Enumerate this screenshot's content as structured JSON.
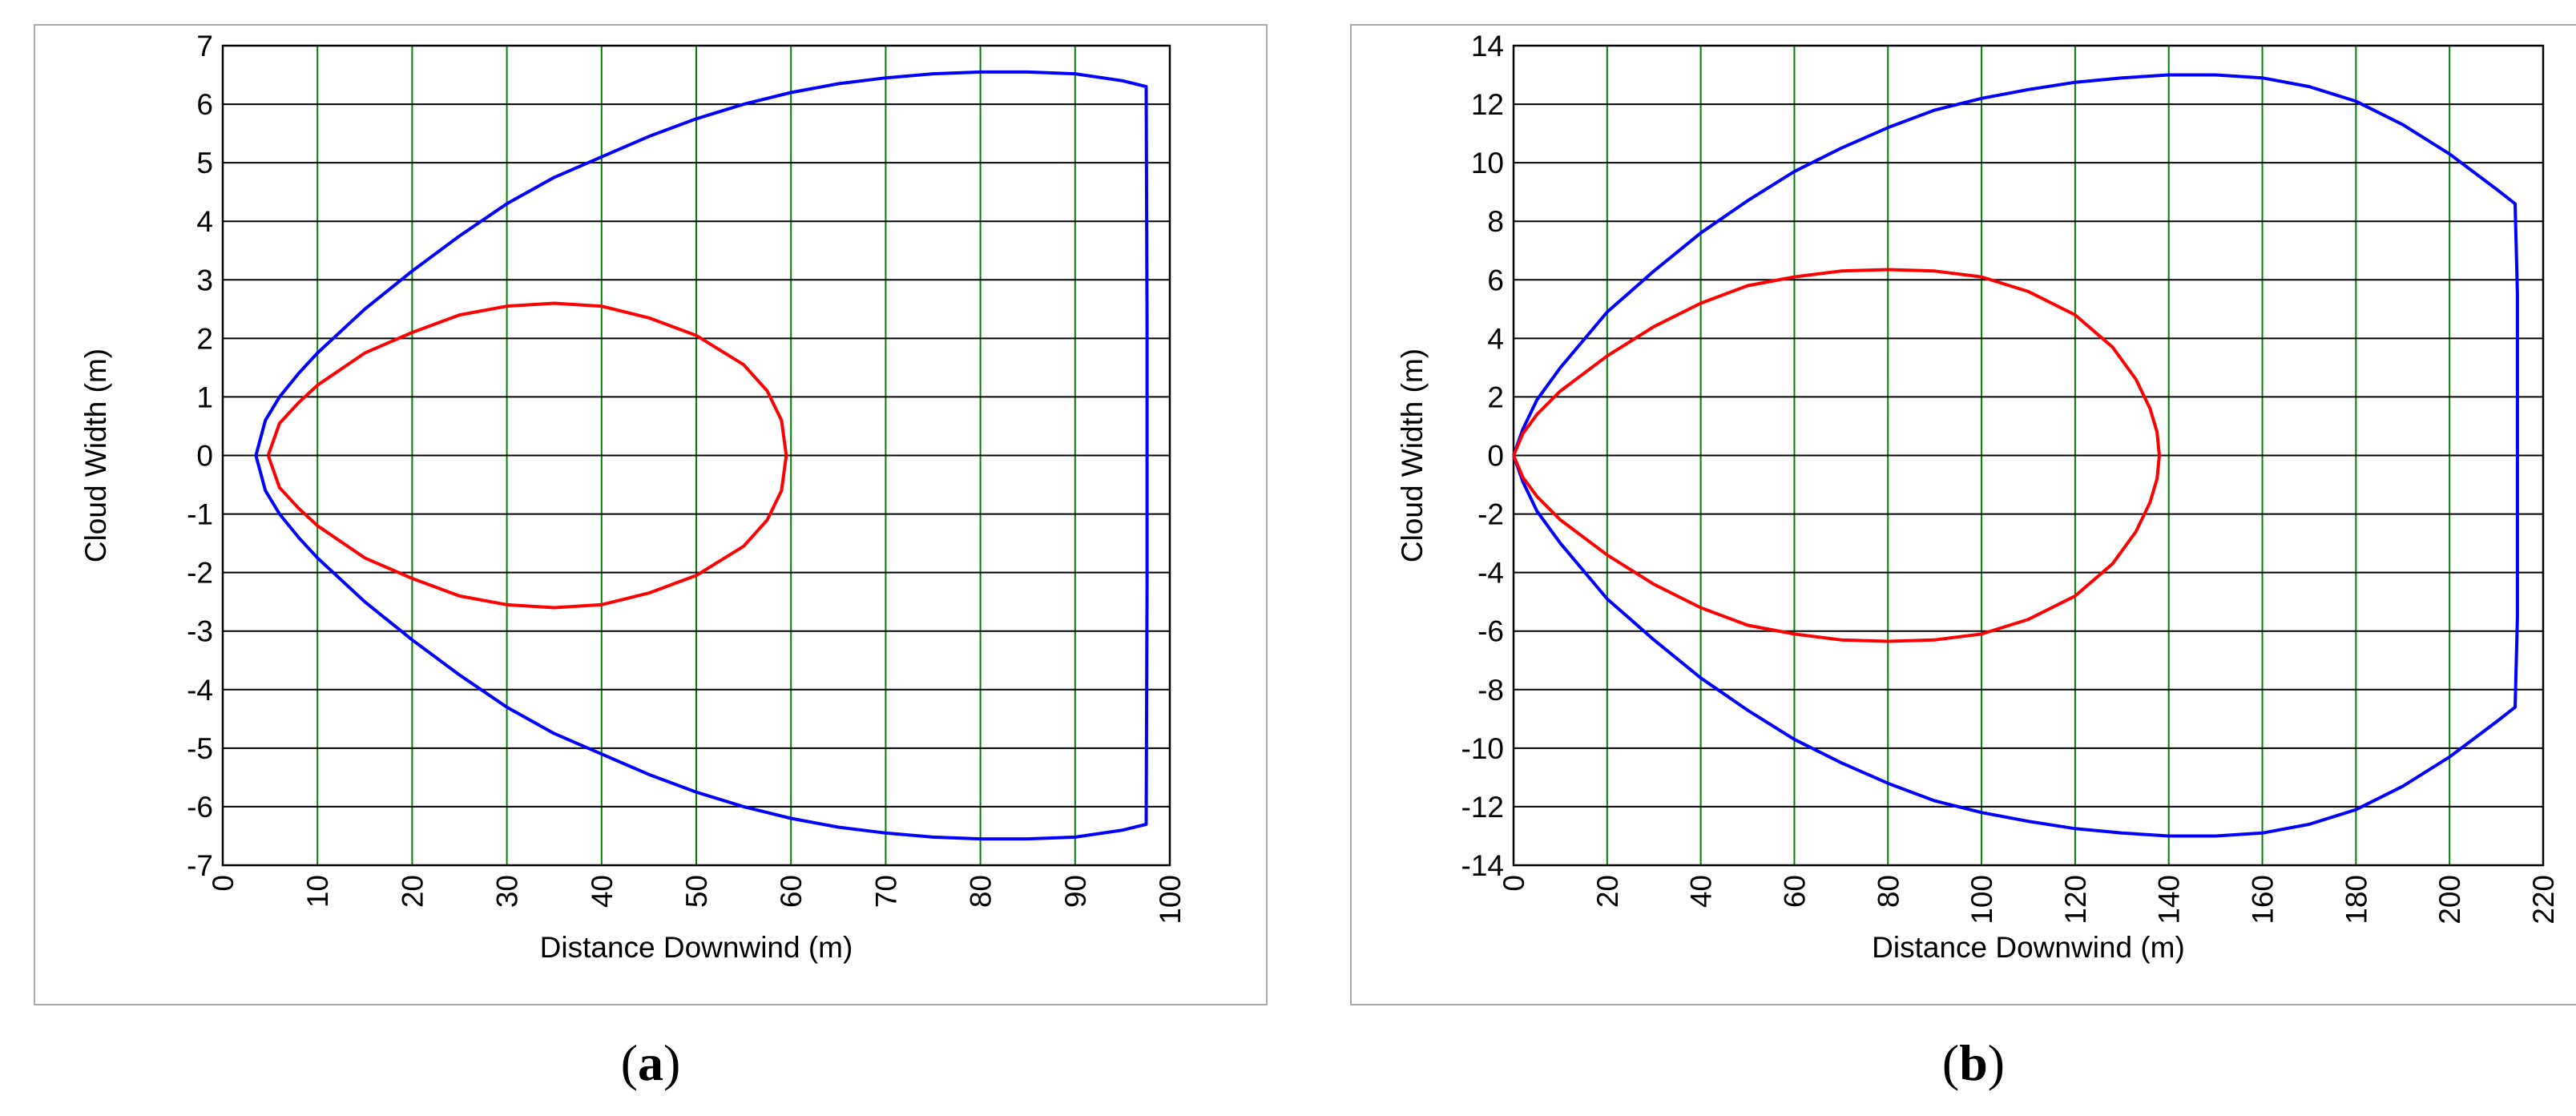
{
  "colors": {
    "vgrid": "#008000",
    "hgrid": "#000000",
    "outer_contour": "#0000ff",
    "inner_contour": "#ff0000",
    "frame": "#a9a9a9"
  },
  "chart_data": [
    {
      "type": "line",
      "caption_letter": "a",
      "xlabel": "Distance Downwind (m)",
      "ylabel": "Cloud Width (m)",
      "xlim": [
        0,
        100
      ],
      "ylim": [
        -7,
        7
      ],
      "x_ticks": [
        0,
        10,
        20,
        30,
        40,
        50,
        60,
        70,
        80,
        90,
        100
      ],
      "y_ticks": [
        7,
        6,
        5,
        4,
        3,
        2,
        1,
        0,
        -1,
        -2,
        -3,
        -4,
        -5,
        -6,
        -7
      ],
      "grid": true,
      "series": [
        {
          "color": "#0000ff",
          "x": [
            3.5,
            4.5,
            6,
            8,
            10,
            15,
            20,
            25,
            30,
            35,
            40,
            45,
            50,
            55,
            60,
            65,
            70,
            75,
            80,
            85,
            90,
            95,
            97.5,
            97.6,
            97.6,
            97.5,
            95,
            90,
            85,
            80,
            75,
            70,
            65,
            60,
            55,
            50,
            45,
            40,
            35,
            30,
            25,
            20,
            15,
            10,
            8,
            6,
            4.5,
            3.5
          ],
          "y": [
            0,
            0.6,
            1.0,
            1.4,
            1.75,
            2.5,
            3.15,
            3.75,
            4.3,
            4.75,
            5.1,
            5.45,
            5.75,
            6.0,
            6.2,
            6.35,
            6.45,
            6.52,
            6.55,
            6.55,
            6.52,
            6.4,
            6.3,
            2.2,
            -2.2,
            -6.3,
            -6.4,
            -6.52,
            -6.55,
            -6.55,
            -6.52,
            -6.45,
            -6.35,
            -6.2,
            -6.0,
            -5.75,
            -5.45,
            -5.1,
            -4.75,
            -4.3,
            -3.75,
            -3.15,
            -2.5,
            -1.75,
            -1.4,
            -1.0,
            -0.6,
            0
          ]
        },
        {
          "color": "#ff0000",
          "x": [
            4.8,
            6,
            8,
            10,
            15,
            20,
            25,
            30,
            35,
            40,
            45,
            50,
            55,
            57.5,
            59,
            59.5,
            59,
            57.5,
            55,
            50,
            45,
            40,
            35,
            30,
            25,
            20,
            15,
            10,
            8,
            6,
            4.8
          ],
          "y": [
            0,
            0.55,
            0.9,
            1.2,
            1.75,
            2.1,
            2.4,
            2.55,
            2.6,
            2.55,
            2.35,
            2.05,
            1.55,
            1.1,
            0.6,
            0,
            -0.6,
            -1.1,
            -1.55,
            -2.05,
            -2.35,
            -2.55,
            -2.6,
            -2.55,
            -2.4,
            -2.1,
            -1.75,
            -1.2,
            -0.9,
            -0.55,
            0
          ]
        }
      ]
    },
    {
      "type": "line",
      "caption_letter": "b",
      "xlabel": "Distance Downwind (m)",
      "ylabel": "Cloud Width (m)",
      "xlim": [
        0,
        220
      ],
      "ylim": [
        -14,
        14
      ],
      "x_ticks": [
        0,
        20,
        40,
        60,
        80,
        100,
        120,
        140,
        160,
        180,
        200,
        220
      ],
      "y_ticks": [
        14,
        12,
        10,
        8,
        6,
        4,
        2,
        0,
        -2,
        -4,
        -6,
        -8,
        -10,
        -12,
        -14
      ],
      "grid": true,
      "series": [
        {
          "color": "#0000ff",
          "x": [
            0,
            2,
            5,
            10,
            20,
            30,
            40,
            50,
            60,
            70,
            80,
            90,
            100,
            110,
            120,
            130,
            140,
            150,
            160,
            170,
            180,
            190,
            200,
            210,
            214,
            214.5,
            214.5,
            214,
            210,
            200,
            190,
            180,
            170,
            160,
            150,
            140,
            130,
            120,
            110,
            100,
            90,
            80,
            70,
            60,
            50,
            40,
            30,
            20,
            10,
            5,
            2,
            0
          ],
          "y": [
            0,
            0.9,
            1.9,
            3.0,
            4.9,
            6.3,
            7.6,
            8.7,
            9.7,
            10.5,
            11.2,
            11.8,
            12.2,
            12.5,
            12.75,
            12.9,
            13.0,
            13.0,
            12.9,
            12.6,
            12.1,
            11.3,
            10.3,
            9.1,
            8.6,
            5.5,
            -5.5,
            -8.6,
            -9.1,
            -10.3,
            -11.3,
            -12.1,
            -12.6,
            -12.9,
            -13.0,
            -13.0,
            -12.9,
            -12.75,
            -12.5,
            -12.2,
            -11.8,
            -11.2,
            -10.5,
            -9.7,
            -8.7,
            -7.6,
            -6.3,
            -4.9,
            -3.0,
            -1.9,
            -0.9,
            0
          ]
        },
        {
          "color": "#ff0000",
          "x": [
            0,
            2,
            5,
            10,
            20,
            30,
            40,
            50,
            60,
            70,
            80,
            90,
            100,
            110,
            120,
            128,
            133,
            136,
            137.5,
            138,
            137.5,
            136,
            133,
            128,
            120,
            110,
            100,
            90,
            80,
            70,
            60,
            50,
            40,
            30,
            20,
            10,
            5,
            2,
            0
          ],
          "y": [
            0,
            0.75,
            1.4,
            2.2,
            3.4,
            4.4,
            5.2,
            5.8,
            6.1,
            6.3,
            6.35,
            6.3,
            6.1,
            5.6,
            4.8,
            3.7,
            2.6,
            1.6,
            0.8,
            0,
            -0.8,
            -1.6,
            -2.6,
            -3.7,
            -4.8,
            -5.6,
            -6.1,
            -6.3,
            -6.35,
            -6.3,
            -6.1,
            -5.8,
            -5.2,
            -4.4,
            -3.4,
            -2.2,
            -1.4,
            -0.75,
            0
          ]
        }
      ]
    }
  ]
}
